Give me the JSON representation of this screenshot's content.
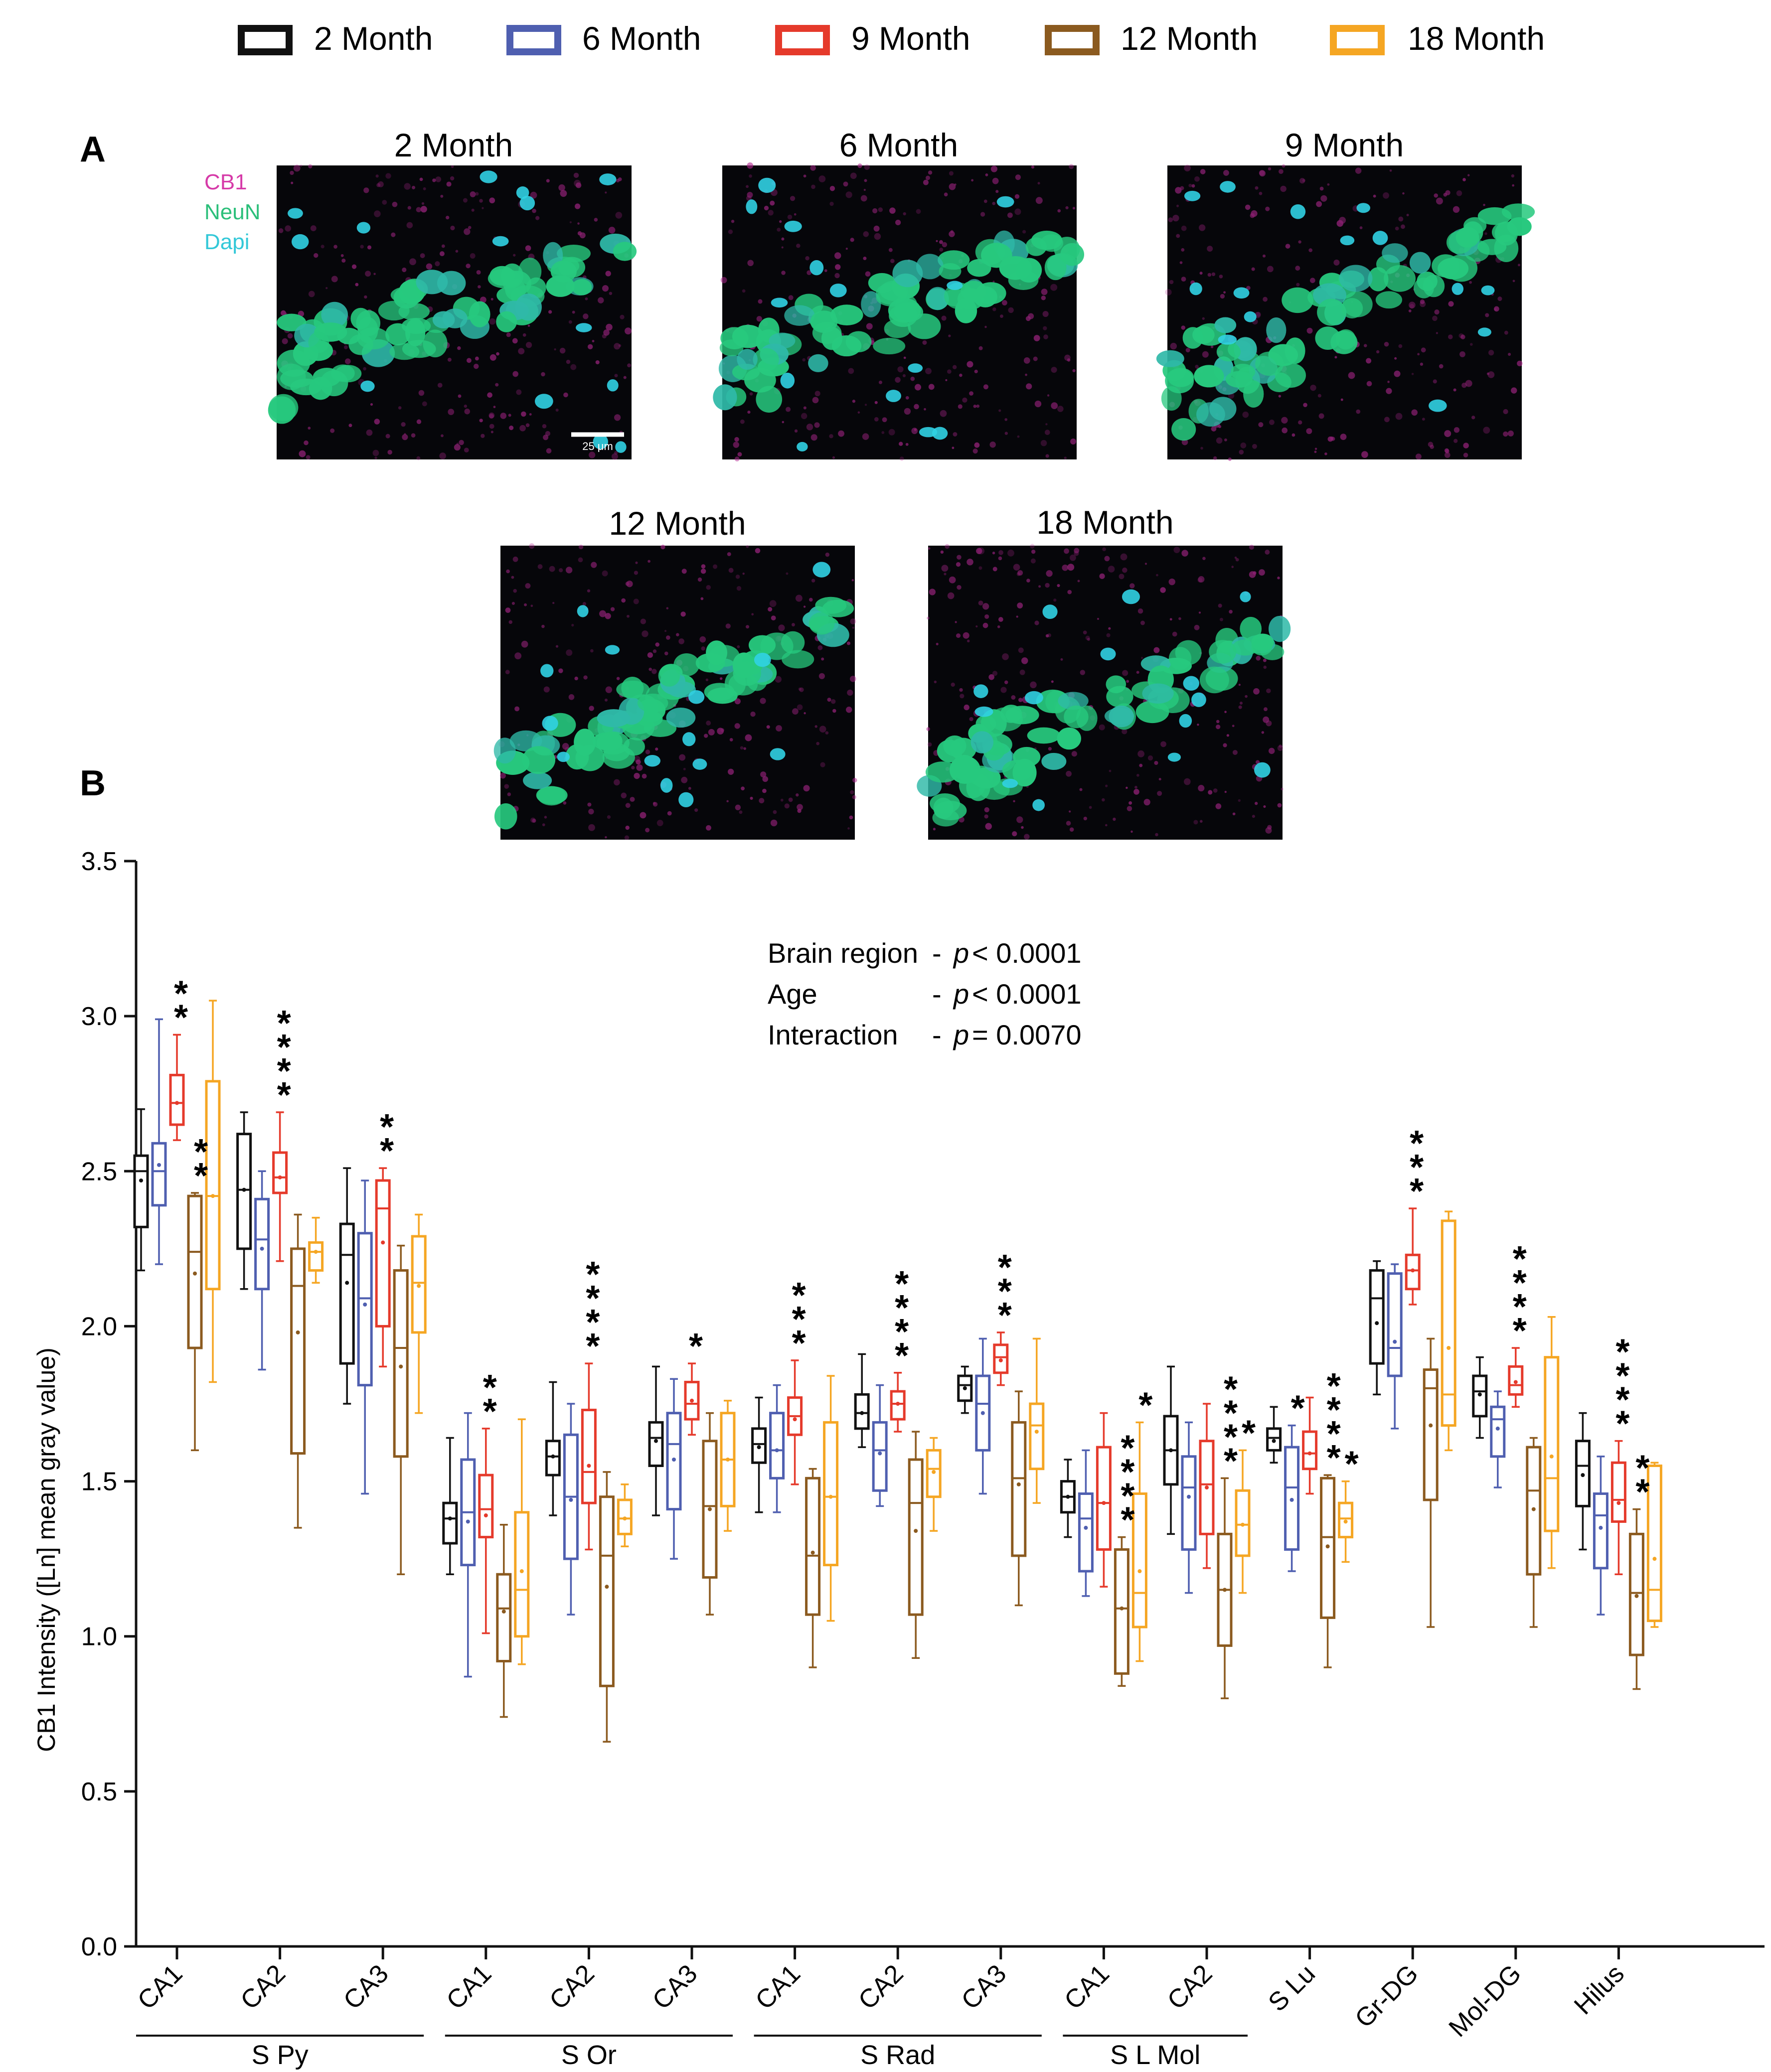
{
  "legend": [
    {
      "label": "2 Month",
      "color": "#111111"
    },
    {
      "label": "6 Month",
      "color": "#4f5fb0"
    },
    {
      "label": "9 Month",
      "color": "#e53a2b"
    },
    {
      "label": "12 Month",
      "color": "#8b5a1f"
    },
    {
      "label": "18 Month",
      "color": "#f5a623"
    }
  ],
  "panel_a": {
    "letter": "A",
    "stain_labels": [
      {
        "text": "CB1",
        "color": "#d63aa8"
      },
      {
        "text": "NeuN",
        "color": "#2bbf7a"
      },
      {
        "text": "Dapi",
        "color": "#33c8d8"
      }
    ],
    "scale_bar": "25 μm",
    "images": [
      "2 Month",
      "6 Month",
      "9 Month",
      "12 Month",
      "18 Month"
    ]
  },
  "panel_b": {
    "letter": "B",
    "stats": [
      {
        "label": "Brain region",
        "dash": "-",
        "p": "p",
        "value": "< 0.0001"
      },
      {
        "label": "Age",
        "dash": "-",
        "p": "p",
        "value": "< 0.0001"
      },
      {
        "label": "Interaction",
        "dash": "-",
        "p": "p",
        "value": "= 0.0070"
      }
    ]
  },
  "chart_data": {
    "type": "boxplot",
    "title": "",
    "ylabel": "CB1 Intensity ([Ln] mean gray value)",
    "xlabel": "",
    "ylim": [
      0,
      3.5
    ],
    "yticks": [
      "0.0",
      "0.5",
      "1.0",
      "1.5",
      "2.0",
      "2.5",
      "3.0",
      "3.5"
    ],
    "series_names": [
      "2 Month",
      "6 Month",
      "9 Month",
      "12 Month",
      "18 Month"
    ],
    "groups": [
      {
        "label": "CA1",
        "boxes": [
          {
            "min": 2.18,
            "q1": 2.32,
            "median": 2.5,
            "q3": 2.55,
            "max": 2.7,
            "mean": 2.47
          },
          {
            "min": 2.2,
            "q1": 2.39,
            "median": 2.5,
            "q3": 2.59,
            "max": 2.99,
            "mean": 2.52
          },
          {
            "min": 2.6,
            "q1": 2.65,
            "median": 2.72,
            "q3": 2.81,
            "max": 2.94,
            "mean": 2.72
          },
          {
            "min": 1.6,
            "q1": 1.93,
            "median": 2.24,
            "q3": 2.42,
            "max": 2.43,
            "mean": 2.17
          },
          {
            "min": 1.82,
            "q1": 2.12,
            "median": 2.42,
            "q3": 2.79,
            "max": 3.05,
            "mean": 2.42
          }
        ],
        "stars": [
          {
            "box": 2,
            "count": 2
          },
          {
            "box": 3,
            "count": 2
          }
        ]
      },
      {
        "label": "CA2",
        "boxes": [
          {
            "min": 2.12,
            "q1": 2.25,
            "median": 2.44,
            "q3": 2.62,
            "max": 2.69,
            "mean": 2.44
          },
          {
            "min": 1.86,
            "q1": 2.12,
            "median": 2.28,
            "q3": 2.41,
            "max": 2.5,
            "mean": 2.25
          },
          {
            "min": 2.21,
            "q1": 2.43,
            "median": 2.48,
            "q3": 2.56,
            "max": 2.69,
            "mean": 2.48
          },
          {
            "min": 1.35,
            "q1": 1.59,
            "median": 2.13,
            "q3": 2.25,
            "max": 2.36,
            "mean": 1.98
          },
          {
            "min": 2.14,
            "q1": 2.18,
            "median": 2.24,
            "q3": 2.27,
            "max": 2.35,
            "mean": 2.24
          }
        ],
        "stars": [
          {
            "box": 2,
            "count": 4
          }
        ]
      },
      {
        "label": "CA3",
        "boxes": [
          {
            "min": 1.75,
            "q1": 1.88,
            "median": 2.23,
            "q3": 2.33,
            "max": 2.51,
            "mean": 2.14
          },
          {
            "min": 1.46,
            "q1": 1.81,
            "median": 2.09,
            "q3": 2.3,
            "max": 2.47,
            "mean": 2.07
          },
          {
            "min": 1.87,
            "q1": 2.0,
            "median": 2.38,
            "q3": 2.47,
            "max": 2.51,
            "mean": 2.27
          },
          {
            "min": 1.2,
            "q1": 1.58,
            "median": 1.93,
            "q3": 2.18,
            "max": 2.26,
            "mean": 1.87
          },
          {
            "min": 1.72,
            "q1": 1.98,
            "median": 2.14,
            "q3": 2.29,
            "max": 2.36,
            "mean": 2.13
          }
        ],
        "stars": [
          {
            "box": 2,
            "count": 2
          }
        ]
      },
      {
        "label": "CA1",
        "boxes": [
          {
            "min": 1.2,
            "q1": 1.3,
            "median": 1.38,
            "q3": 1.43,
            "max": 1.64,
            "mean": 1.38
          },
          {
            "min": 0.87,
            "q1": 1.23,
            "median": 1.4,
            "q3": 1.57,
            "max": 1.72,
            "mean": 1.37
          },
          {
            "min": 1.01,
            "q1": 1.32,
            "median": 1.41,
            "q3": 1.52,
            "max": 1.67,
            "mean": 1.39
          },
          {
            "min": 0.74,
            "q1": 0.92,
            "median": 1.09,
            "q3": 1.2,
            "max": 1.36,
            "mean": 1.08
          },
          {
            "min": 0.91,
            "q1": 1.0,
            "median": 1.15,
            "q3": 1.4,
            "max": 1.7,
            "mean": 1.21
          }
        ],
        "stars": [
          {
            "box": 2,
            "count": 2
          }
        ]
      },
      {
        "label": "CA2",
        "boxes": [
          {
            "min": 1.39,
            "q1": 1.52,
            "median": 1.58,
            "q3": 1.63,
            "max": 1.82,
            "mean": 1.58
          },
          {
            "min": 1.07,
            "q1": 1.25,
            "median": 1.45,
            "q3": 1.65,
            "max": 1.75,
            "mean": 1.44
          },
          {
            "min": 1.28,
            "q1": 1.43,
            "median": 1.53,
            "q3": 1.73,
            "max": 1.88,
            "mean": 1.55
          },
          {
            "min": 0.66,
            "q1": 0.84,
            "median": 1.26,
            "q3": 1.45,
            "max": 1.53,
            "mean": 1.16
          },
          {
            "min": 1.29,
            "q1": 1.33,
            "median": 1.38,
            "q3": 1.44,
            "max": 1.49,
            "mean": 1.38
          }
        ],
        "stars": [
          {
            "box": 2,
            "count": 4
          }
        ]
      },
      {
        "label": "CA3",
        "boxes": [
          {
            "min": 1.39,
            "q1": 1.55,
            "median": 1.64,
            "q3": 1.69,
            "max": 1.87,
            "mean": 1.63
          },
          {
            "min": 1.25,
            "q1": 1.41,
            "median": 1.62,
            "q3": 1.72,
            "max": 1.83,
            "mean": 1.57
          },
          {
            "min": 1.65,
            "q1": 1.7,
            "median": 1.75,
            "q3": 1.82,
            "max": 1.88,
            "mean": 1.76
          },
          {
            "min": 1.07,
            "q1": 1.19,
            "median": 1.42,
            "q3": 1.63,
            "max": 1.72,
            "mean": 1.41
          },
          {
            "min": 1.34,
            "q1": 1.42,
            "median": 1.57,
            "q3": 1.72,
            "max": 1.76,
            "mean": 1.57
          }
        ],
        "stars": [
          {
            "box": 2,
            "count": 1
          }
        ]
      },
      {
        "label": "CA1",
        "boxes": [
          {
            "min": 1.4,
            "q1": 1.56,
            "median": 1.62,
            "q3": 1.67,
            "max": 1.77,
            "mean": 1.61
          },
          {
            "min": 1.4,
            "q1": 1.51,
            "median": 1.6,
            "q3": 1.72,
            "max": 1.81,
            "mean": 1.6
          },
          {
            "min": 1.49,
            "q1": 1.65,
            "median": 1.71,
            "q3": 1.77,
            "max": 1.89,
            "mean": 1.7
          },
          {
            "min": 0.9,
            "q1": 1.07,
            "median": 1.26,
            "q3": 1.51,
            "max": 1.54,
            "mean": 1.27
          },
          {
            "min": 1.05,
            "q1": 1.23,
            "median": 1.45,
            "q3": 1.69,
            "max": 1.84,
            "mean": 1.45
          }
        ],
        "stars": [
          {
            "box": 2,
            "count": 3
          }
        ]
      },
      {
        "label": "CA2",
        "boxes": [
          {
            "min": 1.61,
            "q1": 1.67,
            "median": 1.72,
            "q3": 1.78,
            "max": 1.91,
            "mean": 1.72
          },
          {
            "min": 1.42,
            "q1": 1.47,
            "median": 1.6,
            "q3": 1.69,
            "max": 1.81,
            "mean": 1.59
          },
          {
            "min": 1.66,
            "q1": 1.7,
            "median": 1.75,
            "q3": 1.79,
            "max": 1.85,
            "mean": 1.75
          },
          {
            "min": 0.93,
            "q1": 1.07,
            "median": 1.43,
            "q3": 1.57,
            "max": 1.66,
            "mean": 1.34
          },
          {
            "min": 1.34,
            "q1": 1.45,
            "median": 1.54,
            "q3": 1.6,
            "max": 1.64,
            "mean": 1.53
          }
        ],
        "stars": [
          {
            "box": 2,
            "count": 4
          }
        ]
      },
      {
        "label": "CA3",
        "boxes": [
          {
            "min": 1.72,
            "q1": 1.76,
            "median": 1.81,
            "q3": 1.84,
            "max": 1.87,
            "mean": 1.8
          },
          {
            "min": 1.46,
            "q1": 1.6,
            "median": 1.75,
            "q3": 1.84,
            "max": 1.96,
            "mean": 1.72
          },
          {
            "min": 1.81,
            "q1": 1.85,
            "median": 1.9,
            "q3": 1.94,
            "max": 1.98,
            "mean": 1.89
          },
          {
            "min": 1.1,
            "q1": 1.26,
            "median": 1.51,
            "q3": 1.69,
            "max": 1.79,
            "mean": 1.49
          },
          {
            "min": 1.43,
            "q1": 1.54,
            "median": 1.68,
            "q3": 1.75,
            "max": 1.96,
            "mean": 1.66
          }
        ],
        "stars": [
          {
            "box": 2,
            "count": 3
          }
        ]
      },
      {
        "label": "CA1",
        "boxes": [
          {
            "min": 1.32,
            "q1": 1.4,
            "median": 1.45,
            "q3": 1.5,
            "max": 1.57,
            "mean": 1.45
          },
          {
            "min": 1.13,
            "q1": 1.21,
            "median": 1.38,
            "q3": 1.46,
            "max": 1.6,
            "mean": 1.35
          },
          {
            "min": 1.16,
            "q1": 1.28,
            "median": 1.43,
            "q3": 1.61,
            "max": 1.72,
            "mean": 1.43
          },
          {
            "min": 0.84,
            "q1": 0.88,
            "median": 1.09,
            "q3": 1.28,
            "max": 1.32,
            "mean": 1.09
          },
          {
            "min": 0.92,
            "q1": 1.03,
            "median": 1.14,
            "q3": 1.46,
            "max": 1.69,
            "mean": 1.21
          }
        ],
        "stars": [
          {
            "box": 3,
            "count": 4
          },
          {
            "box": 4,
            "count": 1
          }
        ]
      },
      {
        "label": "CA2",
        "boxes": [
          {
            "min": 1.33,
            "q1": 1.49,
            "median": 1.6,
            "q3": 1.71,
            "max": 1.87,
            "mean": 1.6
          },
          {
            "min": 1.14,
            "q1": 1.28,
            "median": 1.48,
            "q3": 1.58,
            "max": 1.69,
            "mean": 1.45
          },
          {
            "min": 1.22,
            "q1": 1.33,
            "median": 1.49,
            "q3": 1.63,
            "max": 1.75,
            "mean": 1.48
          },
          {
            "min": 0.8,
            "q1": 0.97,
            "median": 1.15,
            "q3": 1.33,
            "max": 1.51,
            "mean": 1.15
          },
          {
            "min": 1.14,
            "q1": 1.26,
            "median": 1.36,
            "q3": 1.47,
            "max": 1.6,
            "mean": 1.36
          }
        ],
        "stars": [
          {
            "box": 3,
            "count": 4
          },
          {
            "box": 4,
            "count": 1
          }
        ]
      },
      {
        "label": "S Lu",
        "boxes": [
          {
            "min": 1.56,
            "q1": 1.6,
            "median": 1.64,
            "q3": 1.67,
            "max": 1.74,
            "mean": 1.63
          },
          {
            "min": 1.21,
            "q1": 1.28,
            "median": 1.48,
            "q3": 1.61,
            "max": 1.68,
            "mean": 1.44
          },
          {
            "min": 1.46,
            "q1": 1.54,
            "median": 1.59,
            "q3": 1.66,
            "max": 1.77,
            "mean": 1.59
          },
          {
            "min": 0.9,
            "q1": 1.06,
            "median": 1.32,
            "q3": 1.51,
            "max": 1.52,
            "mean": 1.29
          },
          {
            "min": 1.24,
            "q1": 1.32,
            "median": 1.38,
            "q3": 1.43,
            "max": 1.5,
            "mean": 1.37
          }
        ],
        "stars": [
          {
            "box": 1,
            "count": 1
          },
          {
            "box": 3,
            "count": 4
          },
          {
            "box": 4,
            "count": 1
          }
        ]
      },
      {
        "label": "Gr-DG",
        "boxes": [
          {
            "min": 1.78,
            "q1": 1.88,
            "median": 2.09,
            "q3": 2.18,
            "max": 2.21,
            "mean": 2.01
          },
          {
            "min": 1.67,
            "q1": 1.84,
            "median": 1.93,
            "q3": 2.17,
            "max": 2.2,
            "mean": 1.95
          },
          {
            "min": 2.07,
            "q1": 2.12,
            "median": 2.18,
            "q3": 2.23,
            "max": 2.38,
            "mean": 2.18
          },
          {
            "min": 1.03,
            "q1": 1.44,
            "median": 1.8,
            "q3": 1.86,
            "max": 1.96,
            "mean": 1.68
          },
          {
            "min": 1.6,
            "q1": 1.68,
            "median": 1.78,
            "q3": 2.34,
            "max": 2.37,
            "mean": 1.93
          }
        ],
        "stars": [
          {
            "box": 2,
            "count": 3
          }
        ]
      },
      {
        "label": "Mol-DG",
        "boxes": [
          {
            "min": 1.64,
            "q1": 1.71,
            "median": 1.79,
            "q3": 1.84,
            "max": 1.9,
            "mean": 1.78
          },
          {
            "min": 1.48,
            "q1": 1.58,
            "median": 1.7,
            "q3": 1.74,
            "max": 1.79,
            "mean": 1.67
          },
          {
            "min": 1.74,
            "q1": 1.78,
            "median": 1.81,
            "q3": 1.87,
            "max": 1.93,
            "mean": 1.82
          },
          {
            "min": 1.03,
            "q1": 1.2,
            "median": 1.47,
            "q3": 1.61,
            "max": 1.64,
            "mean": 1.41
          },
          {
            "min": 1.22,
            "q1": 1.34,
            "median": 1.51,
            "q3": 1.9,
            "max": 2.03,
            "mean": 1.58
          }
        ],
        "stars": [
          {
            "box": 2,
            "count": 4
          }
        ]
      },
      {
        "label": "Hilus",
        "boxes": [
          {
            "min": 1.28,
            "q1": 1.42,
            "median": 1.55,
            "q3": 1.63,
            "max": 1.72,
            "mean": 1.52
          },
          {
            "min": 1.07,
            "q1": 1.22,
            "median": 1.39,
            "q3": 1.46,
            "max": 1.58,
            "mean": 1.35
          },
          {
            "min": 1.2,
            "q1": 1.37,
            "median": 1.44,
            "q3": 1.56,
            "max": 1.63,
            "mean": 1.43
          },
          {
            "min": 0.83,
            "q1": 0.94,
            "median": 1.14,
            "q3": 1.33,
            "max": 1.41,
            "mean": 1.13
          },
          {
            "min": 1.03,
            "q1": 1.05,
            "median": 1.15,
            "q3": 1.55,
            "max": 1.56,
            "mean": 1.25
          }
        ],
        "stars": [
          {
            "box": 2,
            "count": 4
          },
          {
            "box": 3,
            "count": 2
          }
        ]
      }
    ],
    "brackets": [
      {
        "label": "S Py",
        "from": 0,
        "to": 2
      },
      {
        "label": "S Or",
        "from": 3,
        "to": 5
      },
      {
        "label": "S Rad",
        "from": 6,
        "to": 8
      },
      {
        "label": "S L Mol",
        "from": 9,
        "to": 10
      }
    ]
  }
}
